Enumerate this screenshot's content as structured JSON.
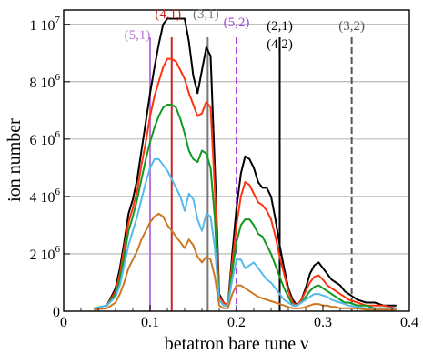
{
  "chart_data": {
    "type": "line",
    "xlabel": "betatron bare tune ν",
    "ylabel": "ion number",
    "xlim": [
      0,
      0.4
    ],
    "ylim": [
      0,
      10500000
    ],
    "grid": "horizontal",
    "xticks": [
      {
        "value": 0,
        "label": "0"
      },
      {
        "value": 0.1,
        "label": "0.1"
      },
      {
        "value": 0.2,
        "label": "0.2"
      },
      {
        "value": 0.3,
        "label": "0.3"
      },
      {
        "value": 0.4,
        "label": "0.4"
      }
    ],
    "yticks": [
      {
        "value": 0,
        "mant": "0",
        "exp": ""
      },
      {
        "value": 2000000,
        "mant": "2 10",
        "exp": "6"
      },
      {
        "value": 4000000,
        "mant": "4 10",
        "exp": "6"
      },
      {
        "value": 6000000,
        "mant": "6 10",
        "exp": "6"
      },
      {
        "value": 8000000,
        "mant": "8 10",
        "exp": "6"
      },
      {
        "value": 10000000,
        "mant": "1 10",
        "exp": "7"
      }
    ],
    "resonances": [
      {
        "x": 0.1,
        "label": "(5,1)",
        "color": "#bb77dd",
        "style": "solid"
      },
      {
        "x": 0.125,
        "label": "(4,1)",
        "color": "#cc2222",
        "style": "solid"
      },
      {
        "x": 0.1667,
        "label": "(3,1)",
        "color": "#777777",
        "style": "solid"
      },
      {
        "x": 0.2,
        "label": "(5,2)",
        "color": "#aa44dd",
        "style": "dashed"
      },
      {
        "x": 0.25,
        "label": "(2,1)",
        "color": "#000000",
        "style": "solid"
      },
      {
        "x": 0.25,
        "label": "(4,2)",
        "color": "#000000",
        "style": "none"
      },
      {
        "x": 0.3333,
        "label": "(3,2)",
        "color": "#555555",
        "style": "dashed"
      }
    ],
    "x": [
      0.035,
      0.05,
      0.06,
      0.065,
      0.07,
      0.075,
      0.08,
      0.085,
      0.09,
      0.095,
      0.1,
      0.105,
      0.11,
      0.115,
      0.12,
      0.125,
      0.13,
      0.135,
      0.14,
      0.145,
      0.15,
      0.155,
      0.16,
      0.165,
      0.17,
      0.175,
      0.18,
      0.185,
      0.19,
      0.195,
      0.2,
      0.205,
      0.21,
      0.215,
      0.22,
      0.225,
      0.23,
      0.235,
      0.24,
      0.245,
      0.25,
      0.255,
      0.26,
      0.265,
      0.27,
      0.275,
      0.28,
      0.285,
      0.29,
      0.295,
      0.3,
      0.305,
      0.31,
      0.315,
      0.32,
      0.325,
      0.33,
      0.34,
      0.35,
      0.36,
      0.37,
      0.385
    ],
    "series": [
      {
        "color": "#000000",
        "values": [
          0.1,
          0.2,
          0.8,
          1.5,
          2.4,
          3.4,
          3.9,
          4.6,
          5.6,
          6.6,
          7.6,
          8.5,
          9.3,
          10.0,
          10.2,
          10.2,
          10.2,
          10.2,
          10.2,
          9.4,
          8.2,
          7.6,
          8.4,
          9.2,
          8.9,
          5.0,
          0.6,
          0.3,
          0.2,
          2.0,
          3.6,
          4.8,
          5.4,
          5.3,
          5.0,
          4.5,
          4.3,
          4.3,
          4.0,
          3.2,
          2.3,
          1.5,
          0.8,
          0.4,
          0.2,
          0.4,
          0.8,
          1.3,
          1.6,
          1.7,
          1.5,
          1.3,
          1.1,
          1.0,
          0.9,
          0.7,
          0.6,
          0.4,
          0.3,
          0.3,
          0.2,
          0.2
        ]
      },
      {
        "color": "#ff3311",
        "values": [
          0.1,
          0.2,
          0.7,
          1.3,
          2.2,
          3.1,
          3.6,
          4.2,
          5.1,
          5.9,
          6.8,
          7.5,
          8.0,
          8.5,
          8.8,
          8.8,
          8.7,
          8.4,
          8.1,
          7.6,
          7.2,
          6.8,
          6.9,
          7.3,
          7.1,
          4.2,
          0.5,
          0.3,
          0.2,
          1.7,
          3.0,
          4.0,
          4.5,
          4.4,
          4.1,
          3.8,
          3.7,
          3.5,
          3.2,
          2.6,
          1.9,
          1.3,
          0.7,
          0.3,
          0.2,
          0.4,
          0.7,
          1.0,
          1.2,
          1.25,
          1.1,
          0.9,
          0.8,
          0.7,
          0.6,
          0.5,
          0.4,
          0.3,
          0.2,
          0.2,
          0.2,
          0.1
        ]
      },
      {
        "color": "#119922",
        "values": [
          0.1,
          0.2,
          0.6,
          1.1,
          1.9,
          2.8,
          3.3,
          3.9,
          4.6,
          5.3,
          5.9,
          6.4,
          6.8,
          7.1,
          7.2,
          7.2,
          7.1,
          6.7,
          6.2,
          5.6,
          5.3,
          5.2,
          5.6,
          5.5,
          5.0,
          3.2,
          0.4,
          0.2,
          0.2,
          1.4,
          2.4,
          3.0,
          3.2,
          3.2,
          3.0,
          2.7,
          2.6,
          2.3,
          2.0,
          1.6,
          1.2,
          0.8,
          0.5,
          0.2,
          0.2,
          0.3,
          0.5,
          0.7,
          0.85,
          0.9,
          0.8,
          0.7,
          0.6,
          0.5,
          0.4,
          0.3,
          0.3,
          0.2,
          0.2,
          0.1,
          0.1,
          0.1
        ]
      },
      {
        "color": "#55bbee",
        "values": [
          0.1,
          0.2,
          0.5,
          0.9,
          1.6,
          2.3,
          2.8,
          3.3,
          3.9,
          4.5,
          5.0,
          5.3,
          5.3,
          5.1,
          4.9,
          4.6,
          4.3,
          4.0,
          3.5,
          4.1,
          3.9,
          3.2,
          2.8,
          3.4,
          3.3,
          2.2,
          0.4,
          0.2,
          0.2,
          1.1,
          1.8,
          1.8,
          1.5,
          1.6,
          1.7,
          1.5,
          1.3,
          1.1,
          1.0,
          0.8,
          0.6,
          0.4,
          0.3,
          0.2,
          0.2,
          0.3,
          0.4,
          0.5,
          0.6,
          0.6,
          0.55,
          0.5,
          0.4,
          0.35,
          0.3,
          0.25,
          0.2,
          0.15,
          0.1,
          0.1,
          0.1,
          0.1
        ]
      },
      {
        "color": "#cc7722",
        "values": [
          0.05,
          0.1,
          0.3,
          0.6,
          1.0,
          1.5,
          1.8,
          2.1,
          2.5,
          2.8,
          3.1,
          3.3,
          3.4,
          3.3,
          3.0,
          2.8,
          2.6,
          2.4,
          2.2,
          2.5,
          2.3,
          1.9,
          1.7,
          1.9,
          1.8,
          1.2,
          0.2,
          0.1,
          0.1,
          0.6,
          0.9,
          0.9,
          0.8,
          0.7,
          0.6,
          0.5,
          0.45,
          0.4,
          0.35,
          0.3,
          0.25,
          0.2,
          0.15,
          0.1,
          0.1,
          0.1,
          0.15,
          0.2,
          0.25,
          0.25,
          0.2,
          0.2,
          0.15,
          0.15,
          0.1,
          0.1,
          0.1,
          0.1,
          0.05,
          0.05,
          0.05,
          0.05
        ]
      }
    ]
  }
}
